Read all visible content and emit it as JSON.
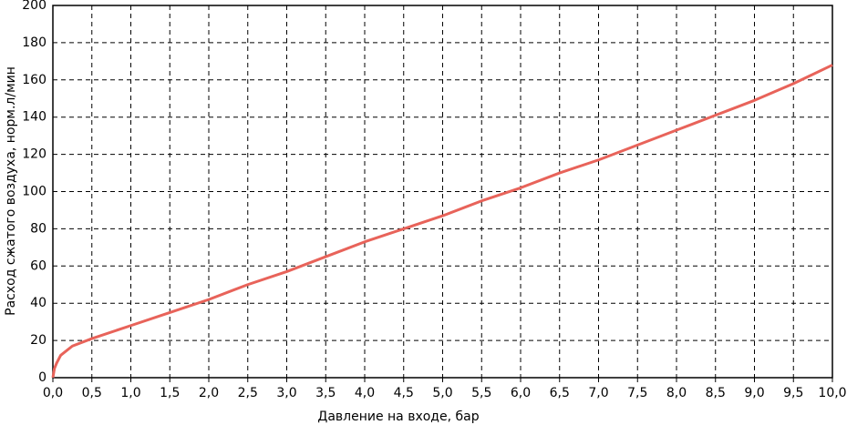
{
  "chart_data": {
    "type": "line",
    "xlabel": "Давление на входе, бар",
    "ylabel": "Расход сжатого воздуха, норм.л/мин",
    "x": [
      0,
      0.02,
      0.05,
      0.1,
      0.25,
      0.5,
      1.0,
      1.5,
      2.0,
      2.5,
      3.0,
      3.5,
      4.0,
      4.5,
      5.0,
      5.5,
      6.0,
      6.5,
      7.0,
      7.5,
      8.0,
      8.5,
      9.0,
      9.5,
      10.0
    ],
    "values": [
      0,
      5,
      8,
      12,
      17,
      21,
      28,
      35,
      42,
      50,
      57,
      65,
      73,
      80,
      87,
      95,
      102,
      110,
      117,
      125,
      133,
      141,
      149,
      158,
      168
    ],
    "color": "#e8635a",
    "xlim": [
      0,
      10
    ],
    "ylim": [
      0,
      200
    ],
    "xticks": [
      {
        "value": 0,
        "label": "0,0"
      },
      {
        "value": 0.5,
        "label": "0,5"
      },
      {
        "value": 1,
        "label": "1,0"
      },
      {
        "value": 1.5,
        "label": "1,5"
      },
      {
        "value": 2,
        "label": "2,0"
      },
      {
        "value": 2.5,
        "label": "2,5"
      },
      {
        "value": 3,
        "label": "3,0"
      },
      {
        "value": 3.5,
        "label": "3,5"
      },
      {
        "value": 4,
        "label": "4,0"
      },
      {
        "value": 4.5,
        "label": "4,5"
      },
      {
        "value": 5,
        "label": "5,0"
      },
      {
        "value": 5.5,
        "label": "5,5"
      },
      {
        "value": 6,
        "label": "6,0"
      },
      {
        "value": 6.5,
        "label": "6,5"
      },
      {
        "value": 7,
        "label": "7,0"
      },
      {
        "value": 7.5,
        "label": "7,5"
      },
      {
        "value": 8,
        "label": "8,0"
      },
      {
        "value": 8.5,
        "label": "8,5"
      },
      {
        "value": 9,
        "label": "9,0"
      },
      {
        "value": 9.5,
        "label": "9,5"
      },
      {
        "value": 10,
        "label": "10,0"
      }
    ],
    "yticks": [
      0,
      20,
      40,
      60,
      80,
      100,
      120,
      140,
      160,
      180,
      200
    ],
    "grid": true
  }
}
